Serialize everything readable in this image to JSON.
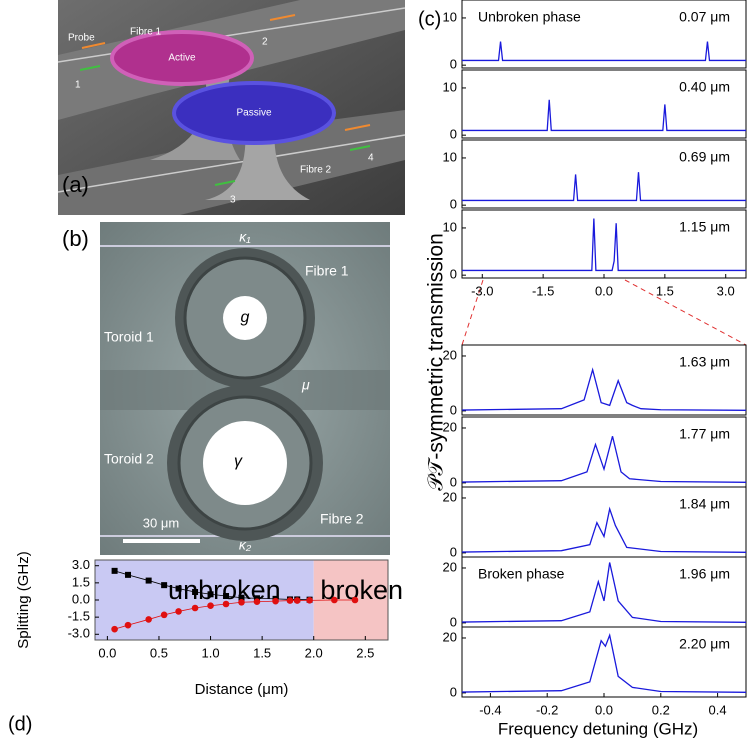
{
  "panel_a": {
    "label": "(a)",
    "probe": "Probe",
    "fibre1": "Fibre 1",
    "port1": "1",
    "port2": "2",
    "active": "Active",
    "passive": "Passive",
    "fibre2": "Fibre 2",
    "port3": "3",
    "port4": "4"
  },
  "panel_b": {
    "label": "(b)",
    "kappa1": "κ₁",
    "fibre1": "Fibre 1",
    "toroid1": "Toroid 1",
    "gain": "g",
    "mu": "μ",
    "toroid2": "Toroid 2",
    "loss": "γ",
    "scale": "30 μm",
    "fibre2": "Fibre 2",
    "kappa2": "κ₂"
  },
  "panel_c": {
    "label": "(c)",
    "ylabel": "𝒫𝒯-symmetric transmission",
    "xlabel": "Frequency detuning (GHz)"
  },
  "panel_d": {
    "label": "(d)"
  },
  "chart_data": [
    {
      "type": "line",
      "annotation": "0.07 μm",
      "phase_label": "Unbroken phase",
      "xlim": [
        -3.5,
        3.5
      ],
      "ylim": [
        -0.6,
        13.8
      ],
      "yticks": [
        0,
        10
      ],
      "series": [
        {
          "color": "#1a1adc",
          "x": [
            -3.5,
            -2.6,
            -2.55,
            -2.5,
            2.5,
            2.55,
            2.6,
            3.5
          ],
          "values": [
            1,
            1,
            5,
            1,
            1,
            5,
            1,
            1
          ]
        }
      ]
    },
    {
      "type": "line",
      "annotation": "0.40 μm",
      "xlim": [
        -3.5,
        3.5
      ],
      "ylim": [
        -0.6,
        13.8
      ],
      "yticks": [
        0,
        10
      ],
      "series": [
        {
          "color": "#1a1adc",
          "x": [
            -3.5,
            -1.4,
            -1.35,
            -1.3,
            1.45,
            1.5,
            1.55,
            3.5
          ],
          "values": [
            1,
            1,
            7.5,
            1,
            1,
            6.5,
            1,
            1
          ]
        }
      ]
    },
    {
      "type": "line",
      "annotation": "0.69 μm",
      "xlim": [
        -3.5,
        3.5
      ],
      "ylim": [
        -0.6,
        13.8
      ],
      "yticks": [
        0,
        10
      ],
      "series": [
        {
          "color": "#1a1adc",
          "x": [
            -3.5,
            -0.75,
            -0.7,
            -0.65,
            0.8,
            0.85,
            0.9,
            3.5
          ],
          "values": [
            1,
            1,
            6.5,
            1,
            1,
            7,
            1,
            1
          ]
        }
      ]
    },
    {
      "type": "line",
      "annotation": "1.15 μm",
      "xlim": [
        -3.5,
        3.5
      ],
      "ylim": [
        -0.6,
        13.8
      ],
      "yticks": [
        0,
        10
      ],
      "xticks": [
        {
          "value": -3,
          "label": "-3.0"
        },
        -1.5,
        {
          "value": 0,
          "label": "0.0"
        },
        1.5,
        {
          "value": 3,
          "label": "3.0"
        }
      ],
      "series": [
        {
          "color": "#1a1adc",
          "x": [
            -3.5,
            -0.3,
            -0.25,
            -0.2,
            0.2,
            0.25,
            0.3,
            0.35,
            3.5
          ],
          "values": [
            1,
            1,
            12,
            1,
            1,
            3,
            11,
            1,
            1
          ]
        }
      ]
    },
    {
      "type": "line",
      "annotation": "1.63 μm",
      "xlim": [
        -0.5,
        0.5
      ],
      "ylim": [
        -1.5,
        24
      ],
      "yticks": [
        0,
        20
      ],
      "series": [
        {
          "color": "#1a1adc",
          "x": [
            -0.5,
            -0.15,
            -0.07,
            -0.04,
            -0.01,
            0.02,
            0.05,
            0.08,
            0.1,
            0.13,
            0.2,
            0.5
          ],
          "values": [
            0.3,
            0.8,
            4,
            15,
            3,
            2,
            11,
            3,
            2,
            0.8,
            0.4,
            0.2
          ]
        }
      ]
    },
    {
      "type": "line",
      "annotation": "1.77 μm",
      "xlim": [
        -0.5,
        0.5
      ],
      "ylim": [
        -1.5,
        24
      ],
      "yticks": [
        0,
        20
      ],
      "series": [
        {
          "color": "#1a1adc",
          "x": [
            -0.5,
            -0.15,
            -0.06,
            -0.03,
            0,
            0.03,
            0.06,
            0.09,
            0.2,
            0.5
          ],
          "values": [
            0.3,
            0.8,
            4,
            14,
            5,
            17,
            4,
            1.5,
            0.5,
            0.2
          ]
        }
      ]
    },
    {
      "type": "line",
      "annotation": "1.84 μm",
      "xlim": [
        -0.5,
        0.5
      ],
      "ylim": [
        -1.5,
        24
      ],
      "yticks": [
        0,
        20
      ],
      "series": [
        {
          "color": "#1a1adc",
          "x": [
            -0.5,
            -0.15,
            -0.05,
            -0.025,
            0,
            0.02,
            0.04,
            0.08,
            0.2,
            0.5
          ],
          "values": [
            0.3,
            0.8,
            3,
            11,
            6,
            16,
            10,
            2,
            0.5,
            0.2
          ]
        }
      ]
    },
    {
      "type": "line",
      "annotation": "1.96 μm",
      "phase_label": "Broken phase",
      "xlim": [
        -0.5,
        0.5
      ],
      "ylim": [
        -1.5,
        24
      ],
      "yticks": [
        0,
        20
      ],
      "series": [
        {
          "color": "#1a1adc",
          "x": [
            -0.5,
            -0.15,
            -0.05,
            -0.02,
            0,
            0.02,
            0.05,
            0.1,
            0.2,
            0.5
          ],
          "values": [
            0.3,
            0.8,
            4,
            15,
            8,
            22,
            8,
            2,
            0.5,
            0.2
          ]
        }
      ]
    },
    {
      "type": "line",
      "annotation": "2.20 μm",
      "xlim": [
        -0.5,
        0.5
      ],
      "ylim": [
        -1.5,
        24
      ],
      "yticks": [
        0,
        20
      ],
      "xticks": [
        -0.4,
        -0.2,
        {
          "value": 0,
          "label": "0.0"
        },
        0.2,
        0.4
      ],
      "series": [
        {
          "color": "#1a1adc",
          "x": [
            -0.5,
            -0.15,
            -0.05,
            -0.01,
            0.005,
            0.02,
            0.05,
            0.1,
            0.2,
            0.5
          ],
          "values": [
            0.3,
            0.8,
            4,
            19,
            17,
            21,
            6,
            2,
            0.5,
            0.2
          ]
        }
      ]
    },
    {
      "type": "scatter",
      "xlabel": "Distance (μm)",
      "ylabel": "Splitting (GHz)",
      "xlim": [
        -0.12,
        2.72
      ],
      "ylim": [
        -3.5,
        3.5
      ],
      "xticks": [
        {
          "value": 0,
          "label": "0.0"
        },
        0.5,
        {
          "value": 1,
          "label": "1.0"
        },
        1.5,
        {
          "value": 2,
          "label": "2.0"
        },
        2.5
      ],
      "yticks": [
        {
          "value": 3,
          "label": "3.0"
        },
        1.5,
        {
          "value": 0,
          "label": "0.0"
        },
        -1.5,
        {
          "value": -3,
          "label": "-3.0"
        }
      ],
      "regions": [
        {
          "label": "unbroken",
          "color": "#c9c9f3"
        },
        {
          "label": "broken",
          "color": "#f5c4c4"
        }
      ],
      "boundary": 2.0,
      "series": [
        {
          "color": "#000000",
          "marker": "square",
          "x": [
            0.07,
            0.2,
            0.4,
            0.55,
            0.69,
            0.85,
            1.0,
            1.15,
            1.3,
            1.45,
            1.63,
            1.77,
            1.84,
            1.96
          ],
          "values": [
            2.55,
            2.2,
            1.7,
            1.3,
            1.0,
            0.7,
            0.5,
            0.35,
            0.2,
            0.15,
            0.1,
            0.05,
            0.05,
            0.03
          ]
        },
        {
          "color": "#e01010",
          "marker": "circle",
          "x": [
            0.07,
            0.2,
            0.4,
            0.55,
            0.69,
            0.85,
            1.0,
            1.15,
            1.3,
            1.45,
            1.63,
            1.77,
            1.84,
            1.96,
            2.2,
            2.4
          ],
          "values": [
            -2.55,
            -2.2,
            -1.7,
            -1.3,
            -1.0,
            -0.7,
            -0.5,
            -0.35,
            -0.2,
            -0.15,
            -0.1,
            -0.05,
            -0.05,
            -0.03,
            0,
            0
          ]
        }
      ]
    }
  ]
}
